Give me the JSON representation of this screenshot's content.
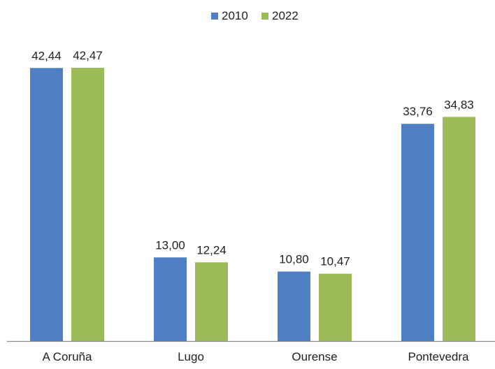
{
  "chart_data": {
    "type": "bar",
    "categories": [
      "A Coruña",
      "Lugo",
      "Ourense",
      "Pontevedra"
    ],
    "series": [
      {
        "name": "2010",
        "color": "#4f7fc4",
        "values": [
          42.44,
          13.0,
          10.8,
          33.76
        ],
        "labels": [
          "42,44",
          "13,00",
          "10,80",
          "33,76"
        ]
      },
      {
        "name": "2022",
        "color": "#9bbb59",
        "values": [
          42.47,
          12.24,
          10.47,
          34.83
        ],
        "labels": [
          "42,47",
          "12,24",
          "10,47",
          "34,83"
        ]
      }
    ],
    "ylim": [
      0,
      42.47
    ],
    "grid": false,
    "legend_position": "top-center",
    "axis_color": "#8c8c8c"
  }
}
